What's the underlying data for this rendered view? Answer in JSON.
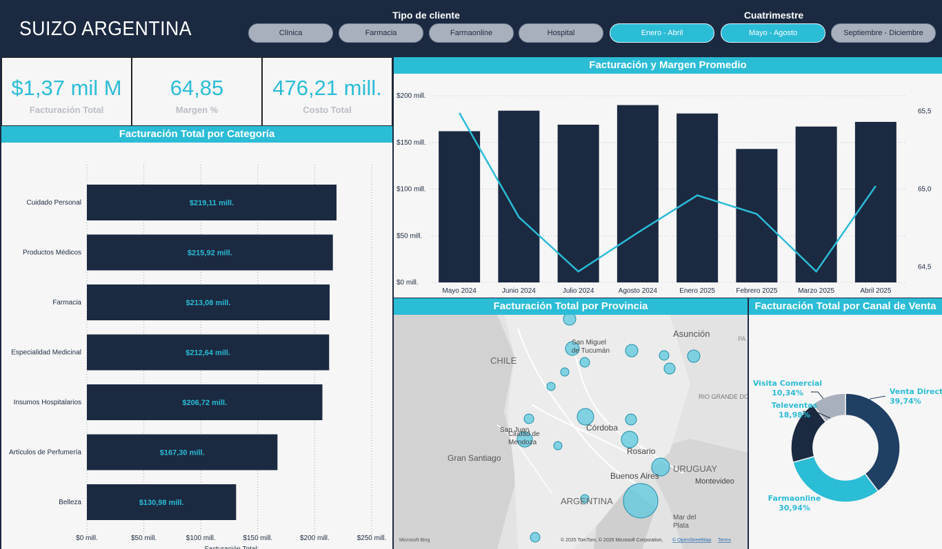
{
  "header": {
    "brand": "SUIZO ARGENTINA",
    "slicers": {
      "tipo_cliente": {
        "title": "Tipo de cliente",
        "options": [
          "Clínica",
          "Farmacia",
          "Farmaonline",
          "Hospital"
        ]
      },
      "cuatrimestre": {
        "title": "Cuatrimestre",
        "options": [
          "Enero - Abril",
          "Mayo - Agosto",
          "Septiembre - Diciembre"
        ],
        "selected": [
          "Enero - Abril",
          "Mayo - Agosto"
        ]
      }
    }
  },
  "kpis": [
    {
      "value": "$1,37 mil M",
      "label": "Facturación Total"
    },
    {
      "value": "64,85",
      "label": "Margen %"
    },
    {
      "value": "476,21 mill.",
      "label": "Costo Total"
    }
  ],
  "colors": {
    "navy": "#1b2a41",
    "accent": "#2bbcd6",
    "grey": "#a9b0bd",
    "panel": "#f6f6f6"
  },
  "category_chart": {
    "title": "Facturación Total por Categoría",
    "axis_title": "Facturación Total:",
    "chart_data": {
      "type": "bar",
      "orientation": "horizontal",
      "categories": [
        "Cuidado Personal",
        "Productos Médicos",
        "Farmacia",
        "Especialidad Medicinal",
        "Insumos Hospitalarios",
        "Artículos de Perfumería",
        "Belleza"
      ],
      "values": [
        219.11,
        215.92,
        213.08,
        212.64,
        206.72,
        167.3,
        130.98
      ],
      "value_labels": [
        "$219,11 mill.",
        "$215,92 mill.",
        "$213,08 mill.",
        "$212,64 mill.",
        "$206,72 mill.",
        "$167,30 mill.",
        "$130,98 mill."
      ],
      "x_ticks": [
        "$0 mill.",
        "$50 mill.",
        "$100 mill.",
        "$150 mill.",
        "$200 mill.",
        "$250 mill."
      ],
      "xlim": [
        0,
        250
      ],
      "xlabel": "Facturación Total:"
    }
  },
  "combo_chart": {
    "title": "Facturación y Margen Promedio",
    "chart_data": {
      "type": "bar",
      "categories": [
        "Mayo 2024",
        "Junio 2024",
        "Julio 2024",
        "Agosto 2024",
        "Enero 2025",
        "Febrero 2025",
        "Marzo 2025",
        "Abril 2025"
      ],
      "series": [
        {
          "name": "Facturación",
          "type": "bar",
          "values": [
            162,
            184,
            169,
            190,
            181,
            143,
            167,
            172
          ]
        },
        {
          "name": "Margen Promedio",
          "type": "line",
          "values": [
            65.49,
            64.82,
            64.47,
            64.72,
            64.96,
            64.84,
            64.47,
            65.02
          ]
        }
      ],
      "y_ticks": [
        "$0 mill.",
        "$50 mill.",
        "$100 mill.",
        "$150 mill.",
        "$200 mill."
      ],
      "ylim": [
        0,
        200
      ],
      "y2_ticks": [
        "64,5",
        "65,0",
        "65,5"
      ],
      "y2lim": [
        64.4,
        65.6
      ]
    }
  },
  "map": {
    "title": "Facturación Total por Provincia",
    "labels": [
      "Asunción",
      "PA",
      "San Miguel de Tucumán",
      "CHILE",
      "RIO GRANDE DO SUL",
      "San Juan",
      "Córdoba",
      "Ciudad de Mendoza",
      "Gran Santiago",
      "Rosario",
      "Buenos Aires",
      "URUGUAY",
      "Montevideo",
      "ARGENTINA",
      "Mar del Plata"
    ],
    "attribution": "© 2025 TomTom, © 2025 Microsoft Corporation,",
    "attribution_link": "© OpenStreetMap",
    "terms": "Terms",
    "bing": "Microsoft Bing"
  },
  "donut": {
    "title": "Facturación Total por Canal de Venta",
    "chart_data": {
      "type": "pie",
      "donut": true,
      "slices": [
        {
          "name": "Venta Directa",
          "pct_label": "39,74%",
          "value": 39.74,
          "color": "#1f3f63"
        },
        {
          "name": "Farmaonline",
          "pct_label": "30,94%",
          "value": 30.94,
          "color": "#2bbcd6"
        },
        {
          "name": "Televentas",
          "pct_label": "18,98%",
          "value": 18.98,
          "color": "#1b2a41"
        },
        {
          "name": "Visita Comercial",
          "pct_label": "10,34%",
          "value": 10.34,
          "color": "#a9b0bd"
        }
      ]
    }
  }
}
